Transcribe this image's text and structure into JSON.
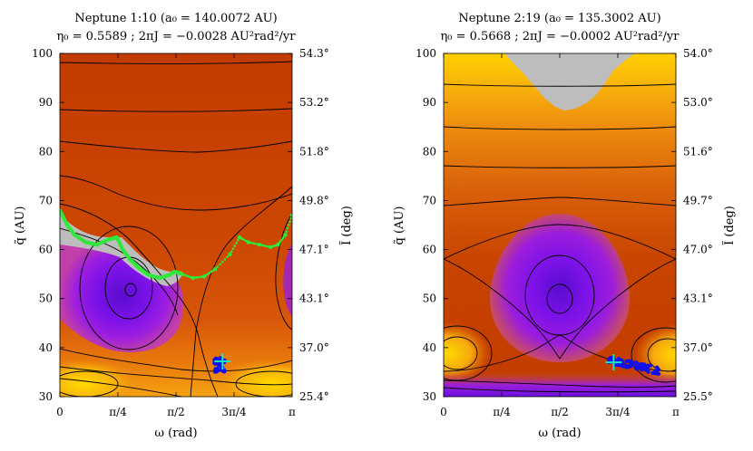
{
  "chart_data": [
    {
      "type": "heatmap",
      "title": "Neptune 1:10 (a₀ = 140.0072 AU)",
      "subtitle": "η₀ = 0.5589  ;  2πJ = −0.0028 AU²rad²/yr",
      "xlabel": "ω (rad)",
      "ylabel": "q̃ (AU)",
      "y2label": "Ĩ (deg)",
      "xlim": [
        0,
        3.14159
      ],
      "ylim": [
        30,
        100
      ],
      "x_ticks": [
        {
          "value": 0,
          "label": "0"
        },
        {
          "value": 0.7854,
          "label": "π/4"
        },
        {
          "value": 1.5708,
          "label": "π/2"
        },
        {
          "value": 2.3562,
          "label": "3π/4"
        },
        {
          "value": 3.14159,
          "label": "π"
        }
      ],
      "y_ticks": [
        30,
        40,
        50,
        60,
        70,
        80,
        90,
        100
      ],
      "y2_ticks": [
        {
          "q": 100,
          "label": "54.3°"
        },
        {
          "q": 90,
          "label": "53.2°"
        },
        {
          "q": 80,
          "label": "51.8°"
        },
        {
          "q": 70,
          "label": "49.8°"
        },
        {
          "q": 60,
          "label": "47.1°"
        },
        {
          "q": 50,
          "label": "43.1°"
        },
        {
          "q": 40,
          "label": "37.0°"
        },
        {
          "q": 30,
          "label": "25.4°"
        }
      ],
      "colors": {
        "high_energy": "#c83f00",
        "mid_energy": "#f39a0e",
        "low_energy_edge": "#ffd400",
        "resonance_core": "#7d12e8",
        "forbidden": "#bdbdbd",
        "contour": "#000000",
        "orbit_green": "#2ee83a",
        "orbit_blue": "#1010f0",
        "initial_marker": "#17e6c2"
      },
      "forbidden_region": "gray band along the upper edge of the resonance island, q̃ ≈ 54–68 AU",
      "resonance_islands": [
        {
          "center_omega": 0.72,
          "center_q": 52
        }
      ],
      "trajectories": [
        {
          "name": "green",
          "points": [
            [
              0.0,
              68
            ],
            [
              0.1,
              65
            ],
            [
              0.2,
              63
            ],
            [
              0.35,
              61.5
            ],
            [
              0.5,
              61
            ],
            [
              0.65,
              62
            ],
            [
              0.77,
              62.5
            ],
            [
              0.85,
              60
            ],
            [
              0.95,
              58
            ],
            [
              1.05,
              56.5
            ],
            [
              1.2,
              54.8
            ],
            [
              1.35,
              54.2
            ],
            [
              1.48,
              54.8
            ],
            [
              1.55,
              55.5
            ],
            [
              1.65,
              55
            ],
            [
              1.8,
              54.2
            ],
            [
              1.95,
              54.5
            ],
            [
              2.1,
              56
            ],
            [
              2.3,
              59
            ],
            [
              2.43,
              62.5
            ],
            [
              2.55,
              61.5
            ],
            [
              2.7,
              61
            ],
            [
              2.85,
              60.5
            ],
            [
              2.95,
              61
            ],
            [
              3.05,
              63
            ],
            [
              3.14159,
              67
            ]
          ]
        },
        {
          "name": "blue",
          "center": [
            2.16,
            36.5
          ]
        }
      ],
      "initial_condition": {
        "omega": 2.2,
        "q": 37.2
      }
    },
    {
      "type": "heatmap",
      "title": "Neptune 2:19 (a₀ = 135.3002 AU)",
      "subtitle": "η₀ = 0.5668  ;  2πJ = −0.0002 AU²rad²/yr",
      "xlabel": "ω (rad)",
      "ylabel": "q̃ (AU)",
      "y2label": "Ĩ (deg)",
      "xlim": [
        0,
        3.14159
      ],
      "ylim": [
        30,
        100
      ],
      "x_ticks": [
        {
          "value": 0,
          "label": "0"
        },
        {
          "value": 0.7854,
          "label": "π/4"
        },
        {
          "value": 1.5708,
          "label": "π/2"
        },
        {
          "value": 2.3562,
          "label": "3π/4"
        },
        {
          "value": 3.14159,
          "label": "π"
        }
      ],
      "y_ticks": [
        30,
        40,
        50,
        60,
        70,
        80,
        90,
        100
      ],
      "y2_ticks": [
        {
          "q": 100,
          "label": "54.0°"
        },
        {
          "q": 90,
          "label": "53.0°"
        },
        {
          "q": 80,
          "label": "51.6°"
        },
        {
          "q": 70,
          "label": "49.7°"
        },
        {
          "q": 60,
          "label": "47.0°"
        },
        {
          "q": 50,
          "label": "43.1°"
        },
        {
          "q": 40,
          "label": "37.0°"
        },
        {
          "q": 30,
          "label": "25.5°"
        }
      ],
      "colors": {
        "high_energy": "#c83f00",
        "mid_energy": "#f39a0e",
        "low_energy_edge": "#ffd400",
        "resonance_core": "#7d12e8",
        "forbidden": "#bdbdbd",
        "contour": "#000000",
        "orbit_blue": "#1010f0",
        "initial_marker": "#17e6c2"
      },
      "forbidden_region": "gray triangle at top center, q̃ ≈ 89–100 AU",
      "resonance_islands": [
        {
          "center_omega": 1.5708,
          "center_q": 50
        }
      ],
      "trajectories": [
        {
          "name": "blue",
          "center": [
            2.5,
            36.0
          ]
        }
      ],
      "initial_condition": {
        "omega": 2.3,
        "q": 37.0
      }
    }
  ]
}
